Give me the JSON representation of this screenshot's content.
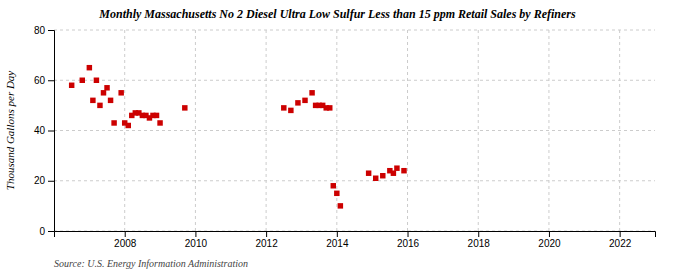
{
  "chart_data": {
    "type": "scatter",
    "title": "Monthly Massachusetts No 2 Diesel Ultra Low Sulfur Less than 15 ppm Retail Sales by Refiners",
    "ylabel": "Thousand Gallons per Day",
    "source": "Source: U.S. Energy Information Administration",
    "color": "#cc0000",
    "marker": "square",
    "grid": true,
    "xlim": [
      2006.0,
      2023.0
    ],
    "ylim": [
      0,
      80
    ],
    "xticks": [
      2008,
      2010,
      2012,
      2014,
      2016,
      2018,
      2020,
      2022
    ],
    "yticks": [
      0,
      20,
      40,
      60,
      80
    ],
    "x": [
      2006.5,
      2006.8,
      2007.0,
      2007.1,
      2007.2,
      2007.3,
      2007.4,
      2007.5,
      2007.6,
      2007.7,
      2007.9,
      2008.0,
      2008.1,
      2008.2,
      2008.3,
      2008.4,
      2008.5,
      2008.6,
      2008.7,
      2008.8,
      2008.9,
      2009.0,
      2009.7,
      2012.5,
      2012.7,
      2012.9,
      2013.1,
      2013.3,
      2013.4,
      2013.5,
      2013.6,
      2013.7,
      2013.8,
      2013.9,
      2014.0,
      2014.1,
      2014.9,
      2015.1,
      2015.3,
      2015.5,
      2015.6,
      2015.7,
      2015.9
    ],
    "values": [
      58,
      60,
      65,
      52,
      60,
      50,
      55,
      57,
      52,
      43,
      55,
      43,
      42,
      46,
      47,
      47,
      46,
      46,
      45,
      46,
      46,
      43,
      49,
      49,
      48,
      51,
      52,
      55,
      50,
      50,
      50,
      49,
      49,
      18,
      15,
      10,
      23,
      21,
      22,
      24,
      23,
      25,
      24
    ]
  }
}
